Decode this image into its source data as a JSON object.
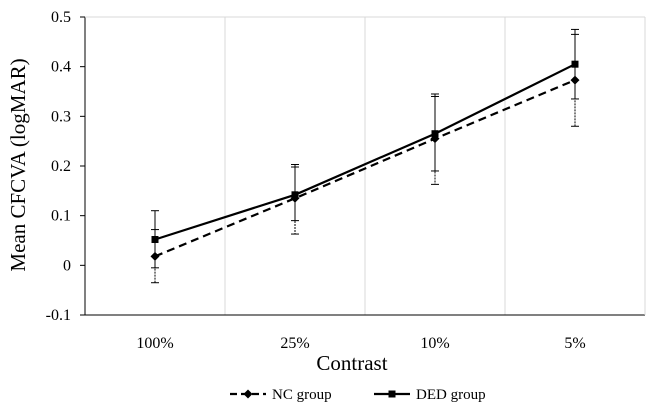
{
  "chart_data": {
    "type": "line",
    "title": "",
    "xlabel": "Contrast",
    "ylabel": "Mean CFCVA (logMAR)",
    "categories": [
      "100%",
      "25%",
      "10%",
      "5%"
    ],
    "ylim": [
      -0.1,
      0.5
    ],
    "yticks": [
      "-0.1",
      "0",
      "0.1",
      "0.2",
      "0.3",
      "0.4",
      "0.5"
    ],
    "grid": "vertical",
    "legend_position": "bottom",
    "series": [
      {
        "name": "NC group",
        "values": [
          0.018,
          0.135,
          0.255,
          0.373
        ],
        "err_low": [
          -0.035,
          0.063,
          0.163,
          0.28
        ],
        "err_high": [
          0.072,
          0.198,
          0.34,
          0.465
        ],
        "line_style": "dashed",
        "marker": "diamond",
        "color": "#000000"
      },
      {
        "name": "DED group",
        "values": [
          0.052,
          0.142,
          0.265,
          0.405
        ],
        "err_low": [
          -0.005,
          0.09,
          0.19,
          0.335
        ],
        "err_high": [
          0.11,
          0.203,
          0.345,
          0.475
        ],
        "line_style": "solid",
        "marker": "square",
        "color": "#000000"
      }
    ]
  }
}
